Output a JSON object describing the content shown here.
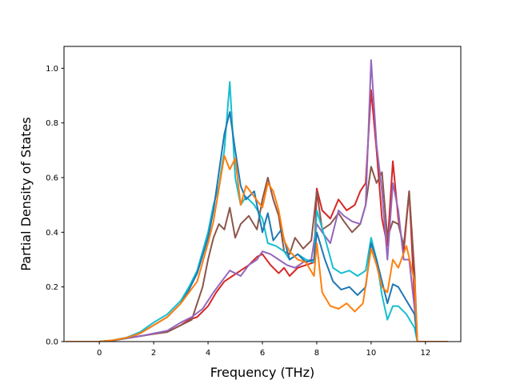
{
  "chart_data": {
    "type": "line",
    "title": "",
    "xlabel": "Frequency (THz)",
    "ylabel": "Partial Density of States",
    "xlim": [
      -1.3,
      13.3
    ],
    "ylim": [
      0.0,
      1.08
    ],
    "xticks": [
      0,
      2,
      4,
      6,
      8,
      10,
      12
    ],
    "xtick_labels": [
      "0",
      "2",
      "4",
      "6",
      "8",
      "10",
      "12"
    ],
    "yticks": [
      0.0,
      0.2,
      0.4,
      0.6,
      0.8,
      1.0
    ],
    "ytick_labels": [
      "0.0",
      "0.2",
      "0.4",
      "0.6",
      "0.8",
      "1.0"
    ],
    "grid": false,
    "legend": "none",
    "series": [
      {
        "color": "#d62728",
        "points": [
          [
            -1.2,
            0
          ],
          [
            0,
            0
          ],
          [
            0.5,
            0.004
          ],
          [
            1,
            0.012
          ],
          [
            1.5,
            0.02
          ],
          [
            2,
            0.028
          ],
          [
            2.5,
            0.035
          ],
          [
            3,
            0.06
          ],
          [
            3.3,
            0.08
          ],
          [
            3.6,
            0.09
          ],
          [
            4,
            0.13
          ],
          [
            4.3,
            0.18
          ],
          [
            4.6,
            0.22
          ],
          [
            4.9,
            0.24
          ],
          [
            5.2,
            0.26
          ],
          [
            5.5,
            0.28
          ],
          [
            5.8,
            0.31
          ],
          [
            6,
            0.32
          ],
          [
            6.3,
            0.28
          ],
          [
            6.6,
            0.25
          ],
          [
            6.8,
            0.27
          ],
          [
            7,
            0.24
          ],
          [
            7.3,
            0.27
          ],
          [
            7.6,
            0.28
          ],
          [
            7.9,
            0.29
          ],
          [
            8,
            0.56
          ],
          [
            8.2,
            0.48
          ],
          [
            8.5,
            0.45
          ],
          [
            8.8,
            0.52
          ],
          [
            9.1,
            0.48
          ],
          [
            9.4,
            0.5
          ],
          [
            9.6,
            0.55
          ],
          [
            9.8,
            0.58
          ],
          [
            10,
            0.92
          ],
          [
            10.2,
            0.7
          ],
          [
            10.4,
            0.45
          ],
          [
            10.6,
            0.35
          ],
          [
            10.8,
            0.66
          ],
          [
            11,
            0.45
          ],
          [
            11.2,
            0.33
          ],
          [
            11.4,
            0.55
          ],
          [
            11.6,
            0.15
          ],
          [
            11.7,
            0
          ],
          [
            12.8,
            0
          ]
        ]
      },
      {
        "color": "#8c564b",
        "points": [
          [
            -1.2,
            0
          ],
          [
            0,
            0
          ],
          [
            0.5,
            0.004
          ],
          [
            1,
            0.012
          ],
          [
            1.5,
            0.02
          ],
          [
            2,
            0.028
          ],
          [
            2.5,
            0.035
          ],
          [
            3,
            0.06
          ],
          [
            3.4,
            0.08
          ],
          [
            3.8,
            0.2
          ],
          [
            4,
            0.3
          ],
          [
            4.2,
            0.38
          ],
          [
            4.4,
            0.43
          ],
          [
            4.6,
            0.41
          ],
          [
            4.8,
            0.49
          ],
          [
            5,
            0.38
          ],
          [
            5.2,
            0.43
          ],
          [
            5.5,
            0.46
          ],
          [
            5.8,
            0.41
          ],
          [
            6,
            0.52
          ],
          [
            6.2,
            0.6
          ],
          [
            6.4,
            0.52
          ],
          [
            6.6,
            0.46
          ],
          [
            6.8,
            0.33
          ],
          [
            7,
            0.32
          ],
          [
            7.2,
            0.38
          ],
          [
            7.5,
            0.34
          ],
          [
            7.8,
            0.37
          ],
          [
            8,
            0.55
          ],
          [
            8.2,
            0.41
          ],
          [
            8.5,
            0.43
          ],
          [
            8.8,
            0.47
          ],
          [
            9,
            0.44
          ],
          [
            9.3,
            0.4
          ],
          [
            9.6,
            0.43
          ],
          [
            9.8,
            0.5
          ],
          [
            10,
            0.64
          ],
          [
            10.2,
            0.58
          ],
          [
            10.4,
            0.62
          ],
          [
            10.6,
            0.38
          ],
          [
            10.8,
            0.44
          ],
          [
            11,
            0.43
          ],
          [
            11.2,
            0.35
          ],
          [
            11.4,
            0.55
          ],
          [
            11.6,
            0.25
          ],
          [
            11.7,
            0
          ],
          [
            12.8,
            0
          ]
        ]
      },
      {
        "color": "#9467bd",
        "points": [
          [
            -1.2,
            0
          ],
          [
            0,
            0
          ],
          [
            0.5,
            0.004
          ],
          [
            1,
            0.012
          ],
          [
            1.5,
            0.02
          ],
          [
            2,
            0.03
          ],
          [
            2.5,
            0.04
          ],
          [
            3,
            0.07
          ],
          [
            3.4,
            0.09
          ],
          [
            3.8,
            0.12
          ],
          [
            4.2,
            0.18
          ],
          [
            4.5,
            0.22
          ],
          [
            4.8,
            0.26
          ],
          [
            5.2,
            0.24
          ],
          [
            5.5,
            0.28
          ],
          [
            5.8,
            0.3
          ],
          [
            6,
            0.33
          ],
          [
            6.3,
            0.32
          ],
          [
            6.6,
            0.3
          ],
          [
            6.9,
            0.28
          ],
          [
            7.2,
            0.27
          ],
          [
            7.5,
            0.29
          ],
          [
            7.8,
            0.3
          ],
          [
            8,
            0.43
          ],
          [
            8.2,
            0.4
          ],
          [
            8.5,
            0.36
          ],
          [
            8.8,
            0.48
          ],
          [
            9,
            0.46
          ],
          [
            9.3,
            0.44
          ],
          [
            9.6,
            0.43
          ],
          [
            9.8,
            0.5
          ],
          [
            10,
            1.03
          ],
          [
            10.2,
            0.72
          ],
          [
            10.4,
            0.55
          ],
          [
            10.6,
            0.3
          ],
          [
            10.8,
            0.58
          ],
          [
            11,
            0.48
          ],
          [
            11.2,
            0.3
          ],
          [
            11.4,
            0.3
          ],
          [
            11.6,
            0.12
          ],
          [
            11.7,
            0
          ],
          [
            12.8,
            0
          ]
        ]
      },
      {
        "color": "#17becf",
        "points": [
          [
            -1.2,
            0
          ],
          [
            0,
            0
          ],
          [
            0.5,
            0.005
          ],
          [
            1,
            0.015
          ],
          [
            1.5,
            0.035
          ],
          [
            2,
            0.07
          ],
          [
            2.5,
            0.1
          ],
          [
            3,
            0.15
          ],
          [
            3.3,
            0.2
          ],
          [
            3.6,
            0.26
          ],
          [
            4,
            0.4
          ],
          [
            4.2,
            0.5
          ],
          [
            4.4,
            0.57
          ],
          [
            4.6,
            0.7
          ],
          [
            4.8,
            0.95
          ],
          [
            5,
            0.6
          ],
          [
            5.2,
            0.5
          ],
          [
            5.4,
            0.53
          ],
          [
            5.7,
            0.5
          ],
          [
            6,
            0.45
          ],
          [
            6.2,
            0.36
          ],
          [
            6.5,
            0.35
          ],
          [
            6.8,
            0.33
          ],
          [
            7,
            0.3
          ],
          [
            7.3,
            0.32
          ],
          [
            7.6,
            0.3
          ],
          [
            7.9,
            0.29
          ],
          [
            8,
            0.48
          ],
          [
            8.3,
            0.38
          ],
          [
            8.6,
            0.27
          ],
          [
            8.9,
            0.25
          ],
          [
            9.2,
            0.26
          ],
          [
            9.5,
            0.24
          ],
          [
            9.8,
            0.26
          ],
          [
            10,
            0.38
          ],
          [
            10.2,
            0.3
          ],
          [
            10.4,
            0.17
          ],
          [
            10.6,
            0.08
          ],
          [
            10.8,
            0.13
          ],
          [
            11,
            0.13
          ],
          [
            11.3,
            0.1
          ],
          [
            11.6,
            0.05
          ],
          [
            11.7,
            0
          ],
          [
            12.8,
            0
          ]
        ]
      },
      {
        "color": "#1f77b4",
        "points": [
          [
            -1.2,
            0
          ],
          [
            0,
            0
          ],
          [
            0.5,
            0.004
          ],
          [
            1,
            0.013
          ],
          [
            1.5,
            0.03
          ],
          [
            2,
            0.06
          ],
          [
            2.5,
            0.09
          ],
          [
            3,
            0.14
          ],
          [
            3.3,
            0.19
          ],
          [
            3.6,
            0.25
          ],
          [
            4,
            0.38
          ],
          [
            4.2,
            0.48
          ],
          [
            4.4,
            0.62
          ],
          [
            4.6,
            0.76
          ],
          [
            4.8,
            0.84
          ],
          [
            5,
            0.7
          ],
          [
            5.2,
            0.57
          ],
          [
            5.4,
            0.52
          ],
          [
            5.7,
            0.55
          ],
          [
            6,
            0.4
          ],
          [
            6.2,
            0.47
          ],
          [
            6.4,
            0.37
          ],
          [
            6.7,
            0.41
          ],
          [
            7,
            0.3
          ],
          [
            7.3,
            0.32
          ],
          [
            7.6,
            0.29
          ],
          [
            7.9,
            0.3
          ],
          [
            8,
            0.4
          ],
          [
            8.3,
            0.3
          ],
          [
            8.6,
            0.22
          ],
          [
            8.9,
            0.19
          ],
          [
            9.2,
            0.2
          ],
          [
            9.5,
            0.17
          ],
          [
            9.8,
            0.2
          ],
          [
            10,
            0.36
          ],
          [
            10.2,
            0.3
          ],
          [
            10.4,
            0.22
          ],
          [
            10.6,
            0.14
          ],
          [
            10.8,
            0.21
          ],
          [
            11,
            0.2
          ],
          [
            11.3,
            0.15
          ],
          [
            11.6,
            0.1
          ],
          [
            11.7,
            0
          ],
          [
            12.8,
            0
          ]
        ]
      },
      {
        "color": "#ff7f0e",
        "points": [
          [
            -1.2,
            0
          ],
          [
            0,
            0
          ],
          [
            0.5,
            0.005
          ],
          [
            1,
            0.014
          ],
          [
            1.5,
            0.03
          ],
          [
            2,
            0.06
          ],
          [
            2.5,
            0.09
          ],
          [
            3,
            0.14
          ],
          [
            3.3,
            0.18
          ],
          [
            3.6,
            0.22
          ],
          [
            4,
            0.36
          ],
          [
            4.2,
            0.44
          ],
          [
            4.4,
            0.56
          ],
          [
            4.6,
            0.68
          ],
          [
            4.8,
            0.63
          ],
          [
            5,
            0.67
          ],
          [
            5.2,
            0.5
          ],
          [
            5.4,
            0.57
          ],
          [
            5.7,
            0.53
          ],
          [
            6,
            0.49
          ],
          [
            6.2,
            0.58
          ],
          [
            6.4,
            0.55
          ],
          [
            6.6,
            0.48
          ],
          [
            6.8,
            0.37
          ],
          [
            7,
            0.33
          ],
          [
            7.3,
            0.3
          ],
          [
            7.6,
            0.29
          ],
          [
            7.9,
            0.24
          ],
          [
            8,
            0.36
          ],
          [
            8.2,
            0.18
          ],
          [
            8.5,
            0.13
          ],
          [
            8.8,
            0.12
          ],
          [
            9.1,
            0.14
          ],
          [
            9.4,
            0.11
          ],
          [
            9.7,
            0.14
          ],
          [
            10,
            0.34
          ],
          [
            10.2,
            0.28
          ],
          [
            10.4,
            0.2
          ],
          [
            10.6,
            0.18
          ],
          [
            10.8,
            0.3
          ],
          [
            11,
            0.27
          ],
          [
            11.3,
            0.35
          ],
          [
            11.6,
            0.22
          ],
          [
            11.7,
            0
          ],
          [
            12.8,
            0
          ]
        ]
      }
    ]
  }
}
